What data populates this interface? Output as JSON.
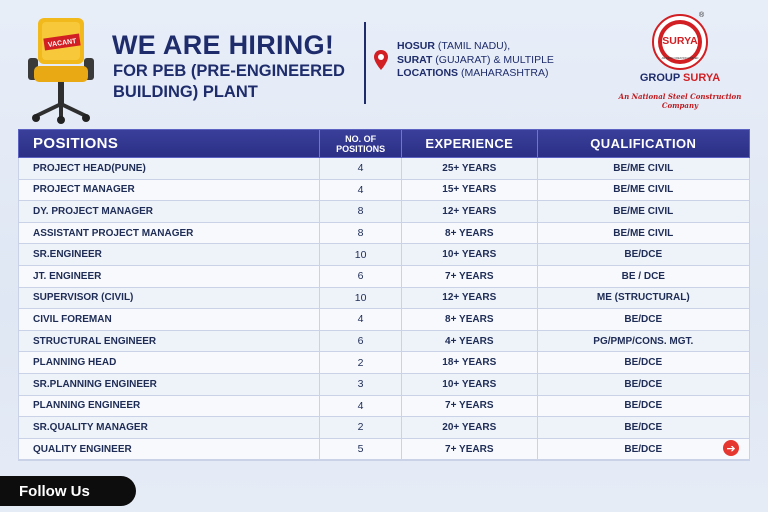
{
  "header": {
    "chair_badge": "VACANT",
    "title": "WE ARE HIRING!",
    "subtitle": "FOR PEB (PRE-ENGINEERED BUILDING) PLANT",
    "locations": [
      {
        "bold": "HOSUR",
        "rest": " (TAMIL NADU),"
      },
      {
        "bold": "SURAT",
        "rest": " (GUJARAT) & MULTIPLE"
      },
      {
        "bold": "LOCATIONS",
        "rest": " (MAHARASHTRA)"
      }
    ]
  },
  "brand": {
    "logo_text": "SURYA",
    "logo_subtext": "AN INFRA CREATION LIMITED",
    "registered_mark": "®",
    "group_prefix": "GROUP ",
    "group_accent": "SURYA",
    "tagline": "An National Steel Construction Company",
    "colors": {
      "red": "#d11f24",
      "navy": "#1e2c6b"
    }
  },
  "table": {
    "headers": {
      "positions": "POSITIONS",
      "no_of_positions_line1": "NO. OF",
      "no_of_positions_line2": "POSITIONS",
      "experience": "EXPERIENCE",
      "qualification": "QUALIFICATION"
    },
    "rows": [
      {
        "position": "PROJECT HEAD(PUNE)",
        "count": "4",
        "experience": "25+ YEARS",
        "qualification": "BE/ME CIVIL"
      },
      {
        "position": "PROJECT MANAGER",
        "count": "4",
        "experience": "15+ YEARS",
        "qualification": "BE/ME CIVIL"
      },
      {
        "position": "DY. PROJECT MANAGER",
        "count": "8",
        "experience": "12+ YEARS",
        "qualification": "BE/ME CIVIL"
      },
      {
        "position": "ASSISTANT PROJECT MANAGER",
        "count": "8",
        "experience": "8+ YEARS",
        "qualification": "BE/ME CIVIL"
      },
      {
        "position": "SR.ENGINEER",
        "count": "10",
        "experience": "10+ YEARS",
        "qualification": "BE/DCE"
      },
      {
        "position": "JT. ENGINEER",
        "count": "6",
        "experience": "7+ YEARS",
        "qualification": "BE / DCE"
      },
      {
        "position": "SUPERVISOR (CIVIL)",
        "count": "10",
        "experience": "12+ YEARS",
        "qualification": "ME (STRUCTURAL)"
      },
      {
        "position": "CIVIL FOREMAN",
        "count": "4",
        "experience": "8+ YEARS",
        "qualification": "BE/DCE"
      },
      {
        "position": "STRUCTURAL ENGINEER",
        "count": "6",
        "experience": "4+ YEARS",
        "qualification": "PG/PMP/CONS. MGT."
      },
      {
        "position": "PLANNING HEAD",
        "count": "2",
        "experience": "18+ YEARS",
        "qualification": "BE/DCE"
      },
      {
        "position": "SR.PLANNING ENGINEER",
        "count": "3",
        "experience": "10+ YEARS",
        "qualification": "BE/DCE"
      },
      {
        "position": "PLANNING ENGINEER",
        "count": "4",
        "experience": "7+ YEARS",
        "qualification": "BE/DCE"
      },
      {
        "position": "SR.QUALITY MANAGER",
        "count": "2",
        "experience": "20+ YEARS",
        "qualification": "BE/DCE"
      },
      {
        "position": "QUALITY ENGINEER",
        "count": "5",
        "experience": "7+ YEARS",
        "qualification": "BE/DCE"
      }
    ],
    "next_icon": "arrow-right-icon",
    "next_glyph": "➔"
  },
  "footer": {
    "follow_label": "Follow Us"
  }
}
